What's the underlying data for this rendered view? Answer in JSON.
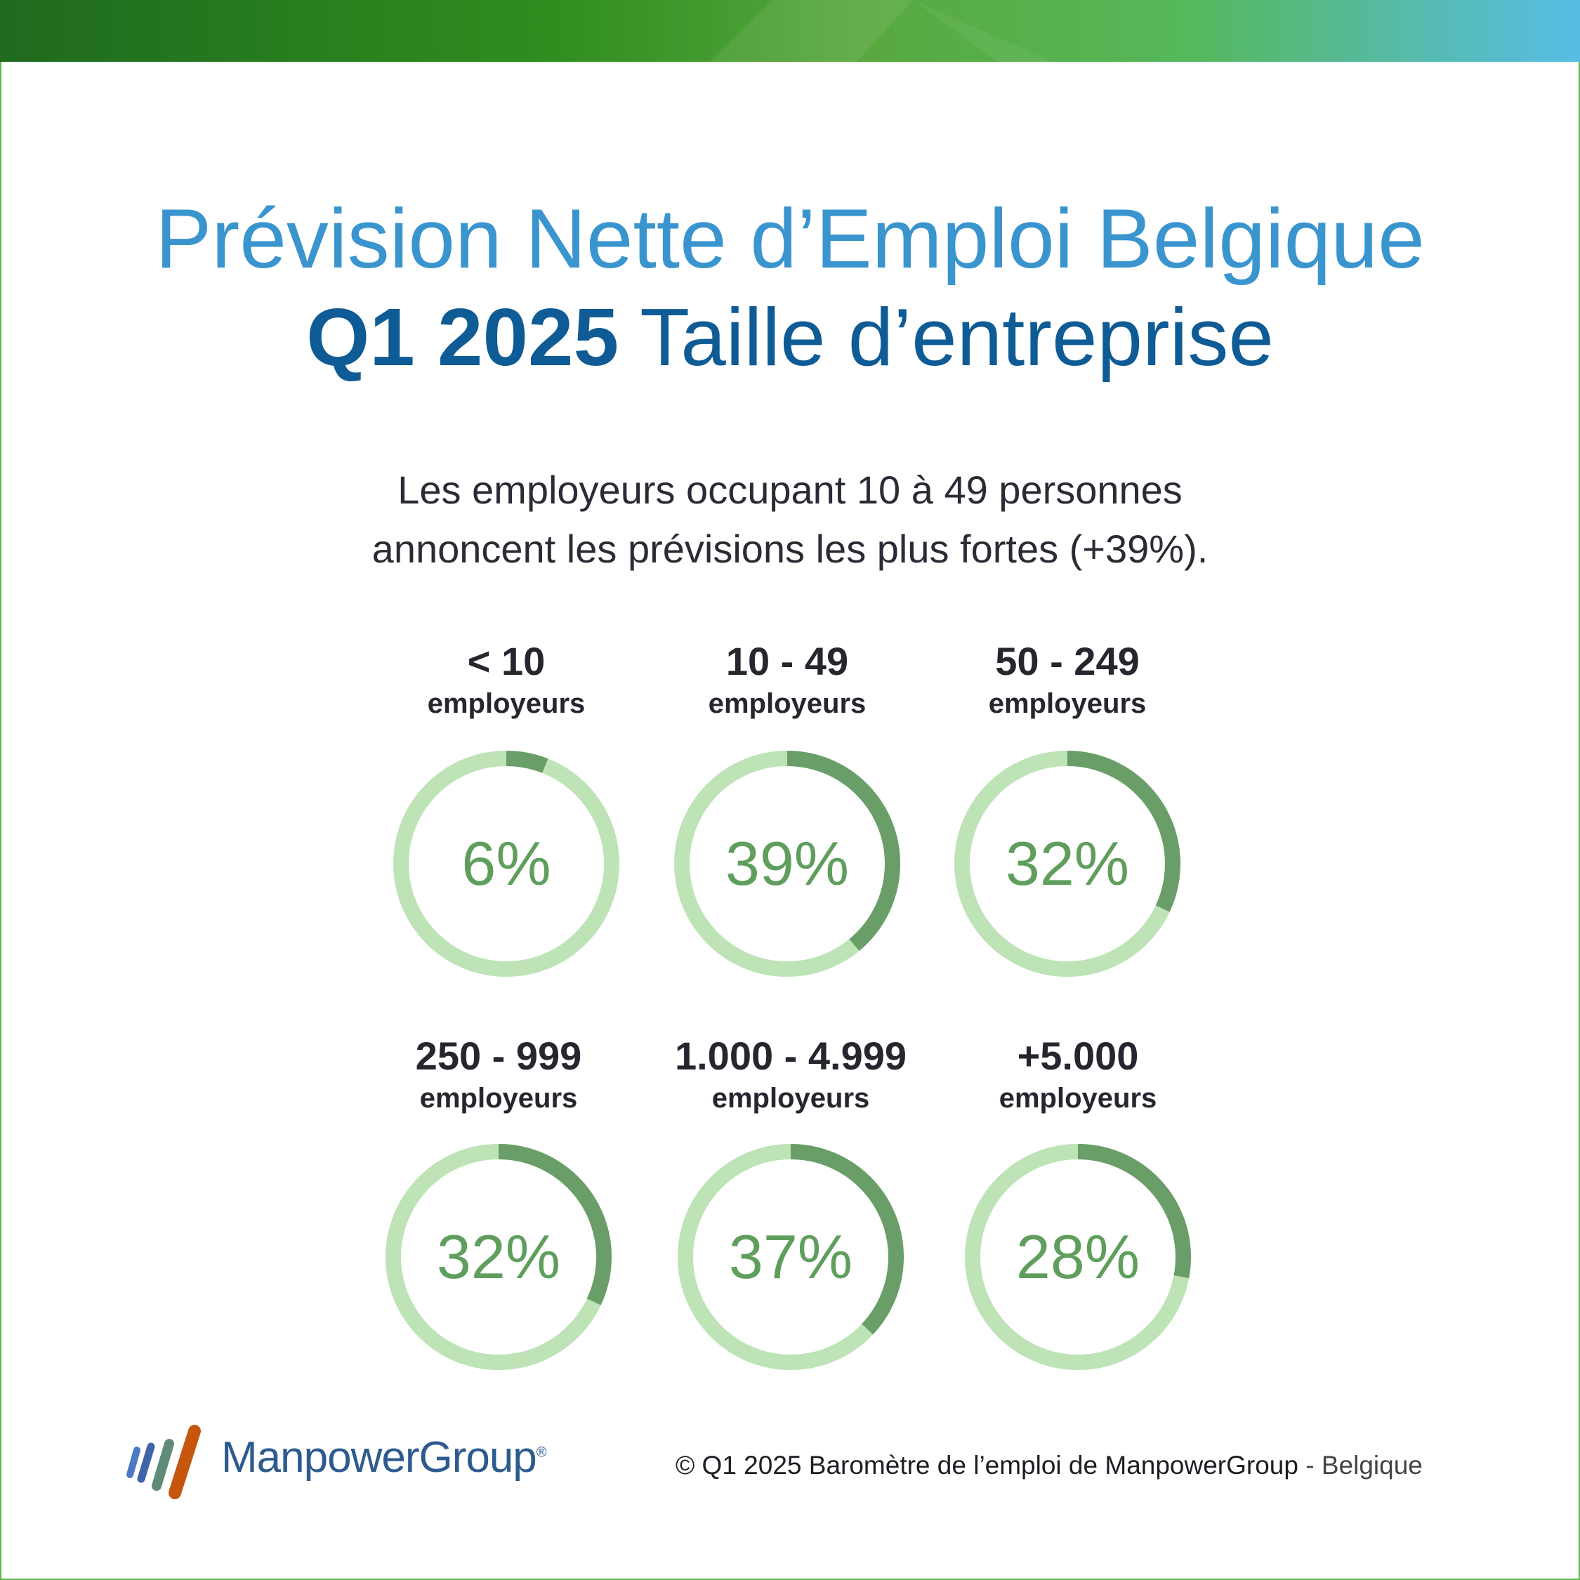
{
  "header": {
    "title_line1": "Prévision Nette d’Emploi Belgique",
    "title_line2_bold": "Q1 2025",
    "title_line2_rest": " Taille d’entreprise"
  },
  "subtitle": {
    "line1": "Les employeurs occupant 10 à 49 personnes",
    "line2": "annoncent les prévisions les plus fortes (+39%)."
  },
  "colors": {
    "track": "#bde3b6",
    "fill": "#6a9e69",
    "value_text": "#5f9e5d",
    "title_light": "#3a95cf",
    "title_dark": "#0f5b95"
  },
  "chart_data": {
    "type": "donut",
    "title": "",
    "items": [
      {
        "range": "< 10",
        "unit": "employeurs",
        "value": 6,
        "value_label": "6%"
      },
      {
        "range": "10 - 49",
        "unit": "employeurs",
        "value": 39,
        "value_label": "39%"
      },
      {
        "range": "50 - 249",
        "unit": "employeurs",
        "value": 32,
        "value_label": "32%"
      },
      {
        "range": "250 - 999",
        "unit": "employeurs",
        "value": 32,
        "value_label": "32%"
      },
      {
        "range": "1.000 - 4.999",
        "unit": "employeurs",
        "value": 37,
        "value_label": "37%"
      },
      {
        "range": "+5.000",
        "unit": "employeurs",
        "value": 28,
        "value_label": "28%"
      }
    ]
  },
  "footer": {
    "logo_text": "ManpowerGroup",
    "logo_reg": "®",
    "source": "© Q1 2025 Baromètre de l’emploi de ManpowerGroup",
    "separator": " - ",
    "country": "Belgique"
  }
}
